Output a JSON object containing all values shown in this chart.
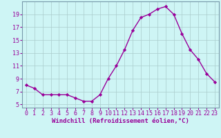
{
  "hours": [
    0,
    1,
    2,
    3,
    4,
    5,
    6,
    7,
    8,
    9,
    10,
    11,
    12,
    13,
    14,
    15,
    16,
    17,
    18,
    19,
    20,
    21,
    22,
    23
  ],
  "values": [
    8.0,
    7.5,
    6.5,
    6.5,
    6.5,
    6.5,
    6.0,
    5.5,
    5.5,
    6.5,
    9.0,
    11.0,
    13.5,
    16.5,
    18.5,
    19.0,
    19.8,
    20.2,
    19.0,
    16.0,
    13.5,
    12.0,
    9.8,
    8.5
  ],
  "line_color": "#990099",
  "marker": "D",
  "markersize": 2.2,
  "linewidth": 1.0,
  "bg_color": "#cef5f5",
  "grid_color": "#aacccc",
  "xlabel": "Windchill (Refroidissement éolien,°C)",
  "ylim": [
    4.5,
    21.0
  ],
  "yticks": [
    5,
    7,
    9,
    11,
    13,
    15,
    17,
    19
  ],
  "axis_label_color": "#990099",
  "tick_color": "#990099",
  "xlabel_fontsize": 6.5,
  "tick_fontsize": 6.0
}
